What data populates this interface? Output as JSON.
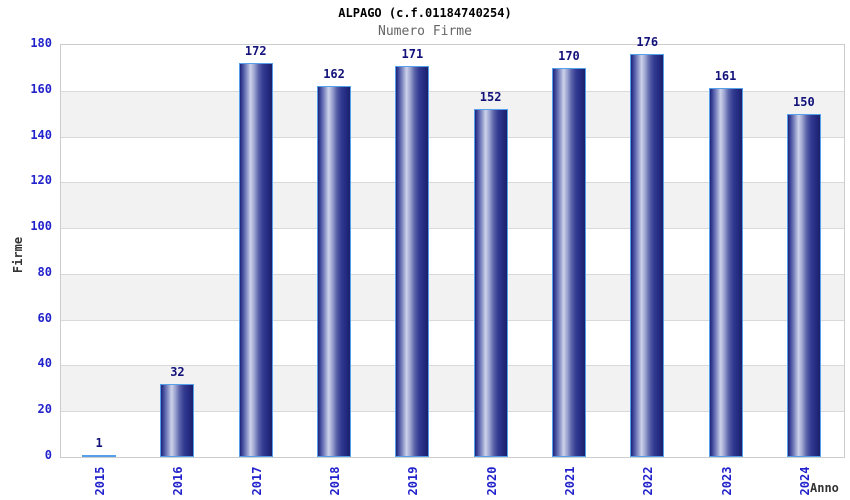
{
  "title": "ALPAGO (c.f.01184740254)",
  "subtitle": "Numero Firme",
  "chart_data": {
    "type": "bar",
    "title": "ALPAGO (c.f.01184740254)",
    "subtitle": "Numero Firme",
    "categories": [
      "2015",
      "2016",
      "2017",
      "2018",
      "2019",
      "2020",
      "2021",
      "2022",
      "2023",
      "2024"
    ],
    "values": [
      1,
      32,
      172,
      162,
      171,
      152,
      170,
      176,
      161,
      150
    ],
    "xlabel": "Anno",
    "ylabel": "Firme",
    "ylim": [
      0,
      180
    ],
    "ytick_step": 20,
    "grid": true,
    "legend": "none",
    "band_fill_alternating": true
  },
  "colors": {
    "title": "#000000",
    "subtitle": "#666666",
    "tick_label": "#2222cc",
    "value_label": "#12127a",
    "axis_label": "#333333",
    "plot_border": "#cccccc",
    "grid": "#d9d9d9",
    "band": "#f2f2f2",
    "bar_border": "#55a0ea",
    "bar_dark": "#1e2478",
    "bar_light": "#cdd2ea"
  }
}
